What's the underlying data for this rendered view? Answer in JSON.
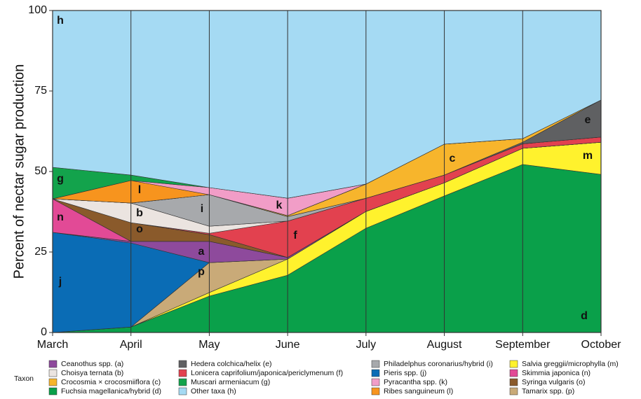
{
  "chart_data": {
    "type": "stacked_area",
    "y_label": "Percent of nectar sugar production",
    "legend_title": "Taxon",
    "categories": [
      "March",
      "April",
      "May",
      "June",
      "July",
      "August",
      "September",
      "October"
    ],
    "ylim": [
      0,
      100
    ],
    "yticks": [
      0,
      25,
      50,
      75,
      100
    ],
    "grid": true,
    "series": [
      {
        "name": "Ceanothus spp. (a)",
        "label": "a",
        "color": "#8e4a9c",
        "values": [
          0,
          0.5,
          6.6,
          0.5,
          0,
          0,
          0,
          0
        ]
      },
      {
        "name": "Choisya ternata (b)",
        "label": "b",
        "color": "#ebe4e0",
        "values": [
          0,
          6.1,
          2.2,
          0,
          0,
          0,
          0,
          0
        ]
      },
      {
        "name": "Crocosmia × crocosmiiflora (c)",
        "label": "c",
        "color": "#f7b52c",
        "values": [
          0,
          0,
          0,
          0.3,
          4.4,
          9.6,
          1.1,
          0
        ]
      },
      {
        "name": "Fuchsia magellanica/hybrid (d)",
        "label": "d",
        "color": "#0aa04a",
        "values": [
          0,
          1.7,
          11.3,
          17.8,
          32.4,
          42.4,
          52.2,
          49.1
        ]
      },
      {
        "name": "Hedera colchica/helix (e)",
        "label": "e",
        "color": "#5f6062",
        "values": [
          0,
          0,
          0,
          0,
          0,
          0,
          0.5,
          11.5
        ]
      },
      {
        "name": "Lonicera caprifolium/japonica/periclymenum (f)",
        "label": "f",
        "color": "#e2414f",
        "values": [
          0,
          0,
          0.4,
          11.3,
          4.1,
          2.4,
          1.4,
          1.6
        ]
      },
      {
        "name": "Muscari armeniacum (g)",
        "label": "g",
        "color": "#13a34c",
        "values": [
          9.8,
          1.7,
          0,
          0,
          0,
          0,
          0,
          0
        ]
      },
      {
        "name": "Other taxa (h)",
        "label": "h",
        "color": "#a5daf3",
        "values": [
          48.7,
          51.1,
          55,
          58.3,
          53.9,
          41.5,
          39.8,
          27.8
        ]
      },
      {
        "name": "Philadelphus coronarius/hybrid (i)",
        "label": "i",
        "color": "#a7a9ac",
        "values": [
          0,
          0,
          9.8,
          1.4,
          0,
          0,
          0,
          0
        ]
      },
      {
        "name": "Pieris spp. (j)",
        "label": "j",
        "color": "#0a6cb5",
        "values": [
          31.1,
          26.1,
          0,
          0,
          0,
          0,
          0,
          0
        ]
      },
      {
        "name": "Pyracantha spp. (k)",
        "label": "k",
        "color": "#f19dc7",
        "values": [
          0,
          0,
          2.2,
          5.4,
          0,
          0,
          0,
          0
        ]
      },
      {
        "name": "Ribes sanguineum (l)",
        "label": "l",
        "color": "#f7941e",
        "values": [
          0,
          7,
          0,
          0,
          0,
          0,
          0,
          0
        ]
      },
      {
        "name": "Salvia greggii/microphylla (m)",
        "label": "m",
        "color": "#fff22d",
        "values": [
          0,
          0,
          1.1,
          5,
          5.2,
          4.1,
          5,
          10
        ]
      },
      {
        "name": "Skimmia japonica (n)",
        "label": "n",
        "color": "#e24a96",
        "values": [
          10.4,
          0,
          0,
          0,
          0,
          0,
          0,
          0
        ]
      },
      {
        "name": "Syringa vulgaris (o)",
        "label": "o",
        "color": "#8a5a2b",
        "values": [
          0,
          5.8,
          2.1,
          0,
          0,
          0,
          0,
          0
        ]
      },
      {
        "name": "Tamarix spp. (p)",
        "label": "p",
        "color": "#c9aa78",
        "values": [
          0,
          0,
          9.3,
          0,
          0,
          0,
          0,
          0
        ]
      }
    ]
  }
}
